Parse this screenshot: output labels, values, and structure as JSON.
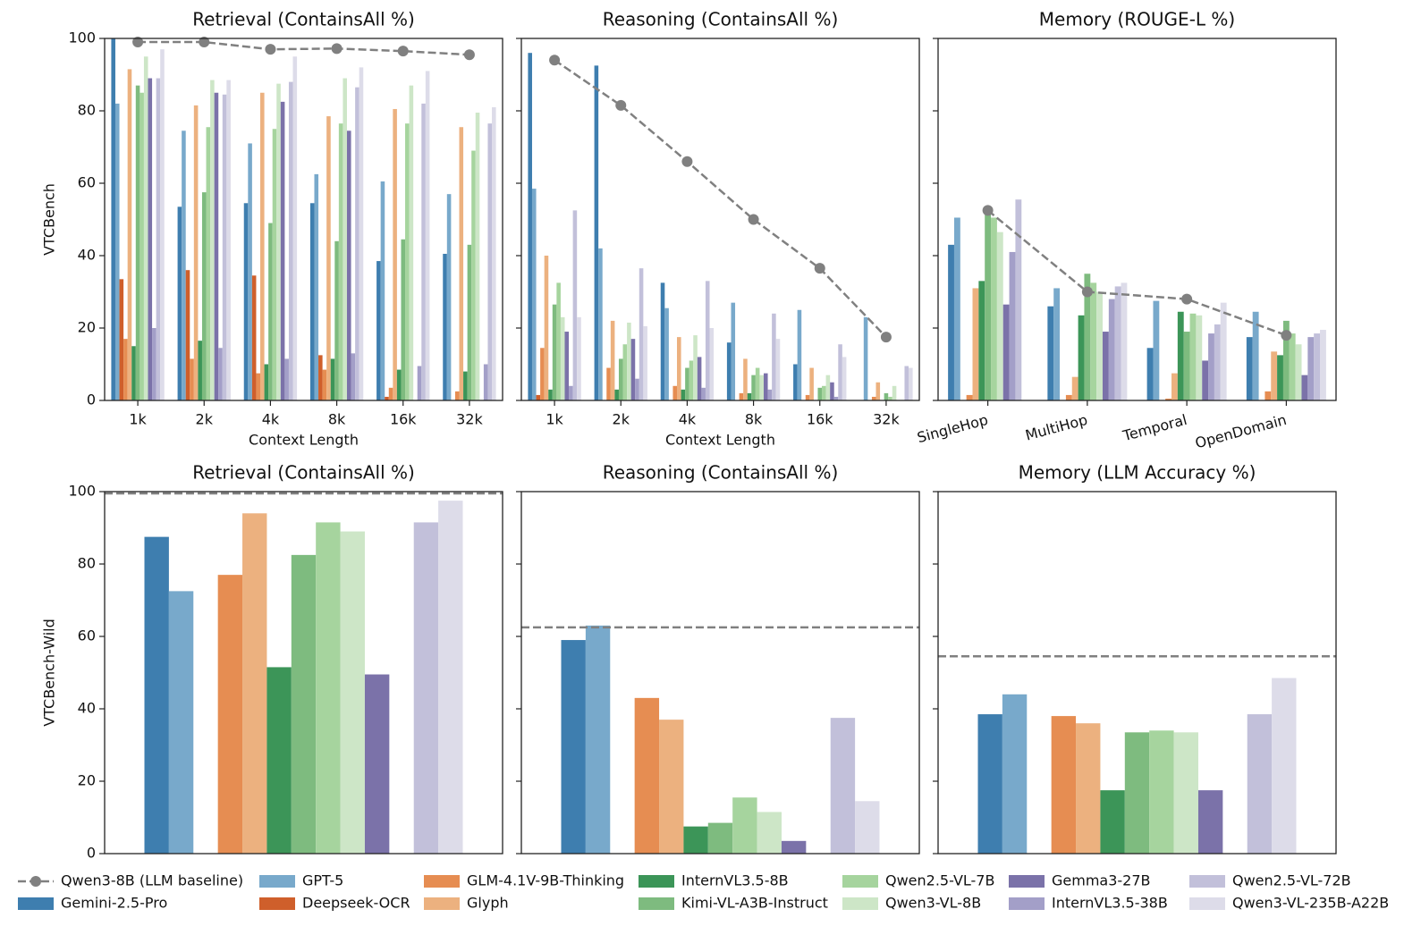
{
  "chart_data": [
    {
      "type": "bar",
      "title": "Retrieval (ContainsAll %)",
      "xlabel": "Context Length",
      "ylabel": "VTCBench",
      "categories": [
        "1k",
        "2k",
        "4k",
        "8k",
        "16k",
        "32k"
      ],
      "ylim": [
        0,
        100
      ],
      "yticks": [
        0,
        20,
        40,
        60,
        80,
        100
      ],
      "baseline": {
        "name": "Qwen3-8B (LLM baseline)",
        "color": "#808080",
        "values": [
          99,
          99,
          97,
          97.2,
          96.5,
          95.5
        ]
      },
      "series": [
        {
          "name": "Gemini-2.5-Pro",
          "color": "#3e7eaf",
          "values": [
            100,
            53.5,
            54.5,
            54.5,
            38.5,
            40.5
          ]
        },
        {
          "name": "GPT-5",
          "color": "#78a9cb",
          "values": [
            82,
            74.5,
            71,
            62.5,
            60.5,
            57
          ]
        },
        {
          "name": "Deepseek-OCR",
          "color": "#cf5f2b",
          "values": [
            33.5,
            36,
            34.5,
            12.5,
            1,
            null
          ]
        },
        {
          "name": "GLM-4.1V-9B-Thinking",
          "color": "#e68d52",
          "values": [
            17,
            11.5,
            7.5,
            8.5,
            3.5,
            2.5
          ]
        },
        {
          "name": "Glyph",
          "color": "#ecb17f",
          "values": [
            91.5,
            81.5,
            85,
            78.5,
            80.5,
            75.5
          ]
        },
        {
          "name": "InternVL3.5-8B",
          "color": "#3c9558",
          "values": [
            15,
            16.5,
            10,
            11.5,
            8.5,
            8
          ]
        },
        {
          "name": "Kimi-VL-A3B-Instruct",
          "color": "#7ebb7f",
          "values": [
            87,
            57.5,
            49,
            44,
            44.5,
            43
          ]
        },
        {
          "name": "Qwen2.5-VL-7B",
          "color": "#a6d49e",
          "values": [
            85,
            75.5,
            75,
            76.5,
            76.5,
            69
          ]
        },
        {
          "name": "Qwen3-VL-8B",
          "color": "#cde6c7",
          "values": [
            95,
            88.5,
            87.5,
            89,
            87,
            79.5
          ]
        },
        {
          "name": "Gemma3-27B",
          "color": "#7b72a9",
          "values": [
            89,
            85,
            82.5,
            74.5,
            null,
            null
          ]
        },
        {
          "name": "InternVL3.5-38B",
          "color": "#a39fc8",
          "values": [
            20,
            14.5,
            11.5,
            13,
            9.5,
            10
          ]
        },
        {
          "name": "Qwen2.5-VL-72B",
          "color": "#c2c0da",
          "values": [
            89,
            84.5,
            88,
            86.5,
            82,
            76.5
          ]
        },
        {
          "name": "Qwen3-VL-235B-A22B",
          "color": "#dddce9",
          "values": [
            97,
            88.5,
            95,
            92,
            91,
            81
          ]
        }
      ]
    },
    {
      "type": "bar",
      "title": "Reasoning (ContainsAll %)",
      "xlabel": "Context Length",
      "categories": [
        "1k",
        "2k",
        "4k",
        "8k",
        "16k",
        "32k"
      ],
      "baseline": {
        "values": [
          94,
          81.5,
          66,
          50,
          36.5,
          17.5
        ]
      },
      "series": [
        {
          "values": [
            96,
            92.5,
            32.5,
            16,
            10,
            null
          ]
        },
        {
          "values": [
            58.5,
            42,
            25.5,
            27,
            25,
            23
          ]
        },
        {
          "values": [
            1.5,
            null,
            null,
            null,
            null,
            null
          ]
        },
        {
          "values": [
            14.5,
            9,
            4,
            2,
            1.5,
            1
          ]
        },
        {
          "values": [
            40,
            22,
            17.5,
            11.5,
            9,
            5
          ]
        },
        {
          "values": [
            3,
            3,
            3,
            2,
            null,
            null
          ]
        },
        {
          "values": [
            26.5,
            11.5,
            9,
            7,
            3.5,
            2
          ]
        },
        {
          "values": [
            32.5,
            15.5,
            11,
            9,
            4,
            1
          ]
        },
        {
          "values": [
            23,
            21.5,
            18,
            7,
            7,
            4
          ]
        },
        {
          "values": [
            19,
            17,
            12,
            7.5,
            5,
            null
          ]
        },
        {
          "values": [
            4,
            6,
            3.5,
            3,
            1,
            null
          ]
        },
        {
          "values": [
            52.5,
            36.5,
            33,
            24,
            15.5,
            9.5
          ]
        },
        {
          "values": [
            23,
            20.5,
            20,
            17,
            12,
            9
          ]
        }
      ]
    },
    {
      "type": "bar",
      "title": "Memory (ROUGE-L %)",
      "categories": [
        "SingleHop",
        "MultiHop",
        "Temporal",
        "OpenDomain"
      ],
      "baseline": {
        "values": [
          52.5,
          30,
          28,
          18
        ]
      },
      "series": [
        {
          "values": [
            43,
            26,
            14.5,
            17.5
          ]
        },
        {
          "values": [
            50.5,
            31,
            27.5,
            24.5
          ]
        },
        {
          "values": [
            null,
            null,
            null,
            null
          ]
        },
        {
          "values": [
            1.5,
            1.5,
            0.5,
            2.5
          ]
        },
        {
          "values": [
            31,
            6.5,
            7.5,
            13.5
          ]
        },
        {
          "values": [
            33,
            23.5,
            24.5,
            12.5
          ]
        },
        {
          "values": [
            52,
            35,
            19,
            22
          ]
        },
        {
          "values": [
            50.5,
            32.5,
            24,
            18.5
          ]
        },
        {
          "values": [
            46.5,
            30,
            23.5,
            15.5
          ]
        },
        {
          "values": [
            26.5,
            19,
            11,
            7
          ]
        },
        {
          "values": [
            41,
            28,
            18.5,
            17.5
          ]
        },
        {
          "values": [
            55.5,
            31.5,
            21,
            18.5
          ]
        },
        {
          "values": [
            null,
            32.5,
            27,
            19.5
          ]
        }
      ]
    },
    {
      "type": "bar",
      "title": "Retrieval (ContainsAll %)",
      "ylabel": "VTCBench-Wild",
      "categories": [
        null
      ],
      "ylim": [
        0,
        100
      ],
      "yticks": [
        0,
        20,
        40,
        60,
        80,
        100
      ],
      "baseline": {
        "value": 99.5
      },
      "series": [
        {
          "values": [
            87.5
          ]
        },
        {
          "values": [
            72.5
          ]
        },
        {
          "values": [
            null
          ]
        },
        {
          "values": [
            77
          ]
        },
        {
          "values": [
            94
          ]
        },
        {
          "values": [
            51.5
          ]
        },
        {
          "values": [
            82.5
          ]
        },
        {
          "values": [
            91.5
          ]
        },
        {
          "values": [
            89
          ]
        },
        {
          "values": [
            49.5
          ]
        },
        {
          "values": [
            null
          ]
        },
        {
          "values": [
            91.5
          ]
        },
        {
          "values": [
            97.5
          ]
        }
      ]
    },
    {
      "type": "bar",
      "title": "Reasoning (ContainsAll %)",
      "categories": [
        null
      ],
      "baseline": {
        "value": 62.5
      },
      "series": [
        {
          "values": [
            59
          ]
        },
        {
          "values": [
            63
          ]
        },
        {
          "values": [
            null
          ]
        },
        {
          "values": [
            43
          ]
        },
        {
          "values": [
            37
          ]
        },
        {
          "values": [
            7.5
          ]
        },
        {
          "values": [
            8.5
          ]
        },
        {
          "values": [
            15.5
          ]
        },
        {
          "values": [
            11.5
          ]
        },
        {
          "values": [
            3.5
          ]
        },
        {
          "values": [
            null
          ]
        },
        {
          "values": [
            37.5
          ]
        },
        {
          "values": [
            14.5
          ]
        }
      ]
    },
    {
      "type": "bar",
      "title": "Memory (LLM Accuracy %)",
      "categories": [
        null
      ],
      "baseline": {
        "value": 54.5
      },
      "series": [
        {
          "values": [
            38.5
          ]
        },
        {
          "values": [
            44
          ]
        },
        {
          "values": [
            null
          ]
        },
        {
          "values": [
            38
          ]
        },
        {
          "values": [
            36
          ]
        },
        {
          "values": [
            17.5
          ]
        },
        {
          "values": [
            33.5
          ]
        },
        {
          "values": [
            34
          ]
        },
        {
          "values": [
            33.5
          ]
        },
        {
          "values": [
            17.5
          ]
        },
        {
          "values": [
            null
          ]
        },
        {
          "values": [
            38.5
          ]
        },
        {
          "values": [
            48.5
          ]
        }
      ]
    }
  ]
}
